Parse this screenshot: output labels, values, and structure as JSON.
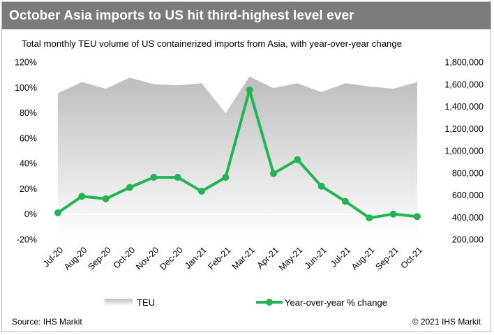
{
  "header": {
    "title": "October Asia imports to US hit third-highest level ever"
  },
  "subtitle": "Total monthly TEU volume of US containerized imports from Asia, with year-over-year change",
  "footer": {
    "source": "Source: IHS Markit",
    "copyright": "© 2021 IHS Markit"
  },
  "colors": {
    "header_bg": "#7b7b7b",
    "teu_area_top": "#bdbdbd",
    "teu_area_bottom": "#ffffff",
    "yoy_line": "#22b452"
  },
  "chart_data": {
    "type": "area",
    "categories": [
      "Jul-20",
      "Aug-20",
      "Sep-20",
      "Oct-20",
      "Nov-20",
      "Dec-20",
      "Jan-21",
      "Feb-21",
      "Mar-21",
      "Apr-21",
      "May-21",
      "Jun-21",
      "Jul-21",
      "Aug-21",
      "Sep-21",
      "Oct-21"
    ],
    "series": [
      {
        "name": "TEU",
        "type": "area",
        "axis": "right",
        "values": [
          1520000,
          1620000,
          1560000,
          1660000,
          1600000,
          1590000,
          1610000,
          1340000,
          1670000,
          1565000,
          1610000,
          1530000,
          1610000,
          1580000,
          1560000,
          1620000
        ]
      },
      {
        "name": "Year-over-year % change",
        "type": "line",
        "axis": "left",
        "values": [
          1,
          14,
          12,
          21,
          29,
          29,
          18,
          29,
          98,
          32,
          43,
          22,
          10,
          -3,
          0,
          -2
        ]
      }
    ],
    "y_left": {
      "min": -20,
      "max": 120,
      "ticks": [
        "-20%",
        "0%",
        "20%",
        "40%",
        "60%",
        "80%",
        "100%",
        "120%"
      ]
    },
    "y_right": {
      "min": 200000,
      "max": 1800000,
      "ticks": [
        "200,000",
        "400,000",
        "600,000",
        "800,000",
        "1,000,000",
        "1,200,000",
        "1,400,000",
        "1,600,000",
        "1,800,000"
      ]
    },
    "grid": false,
    "zero_line": true,
    "legend_position": "bottom"
  }
}
